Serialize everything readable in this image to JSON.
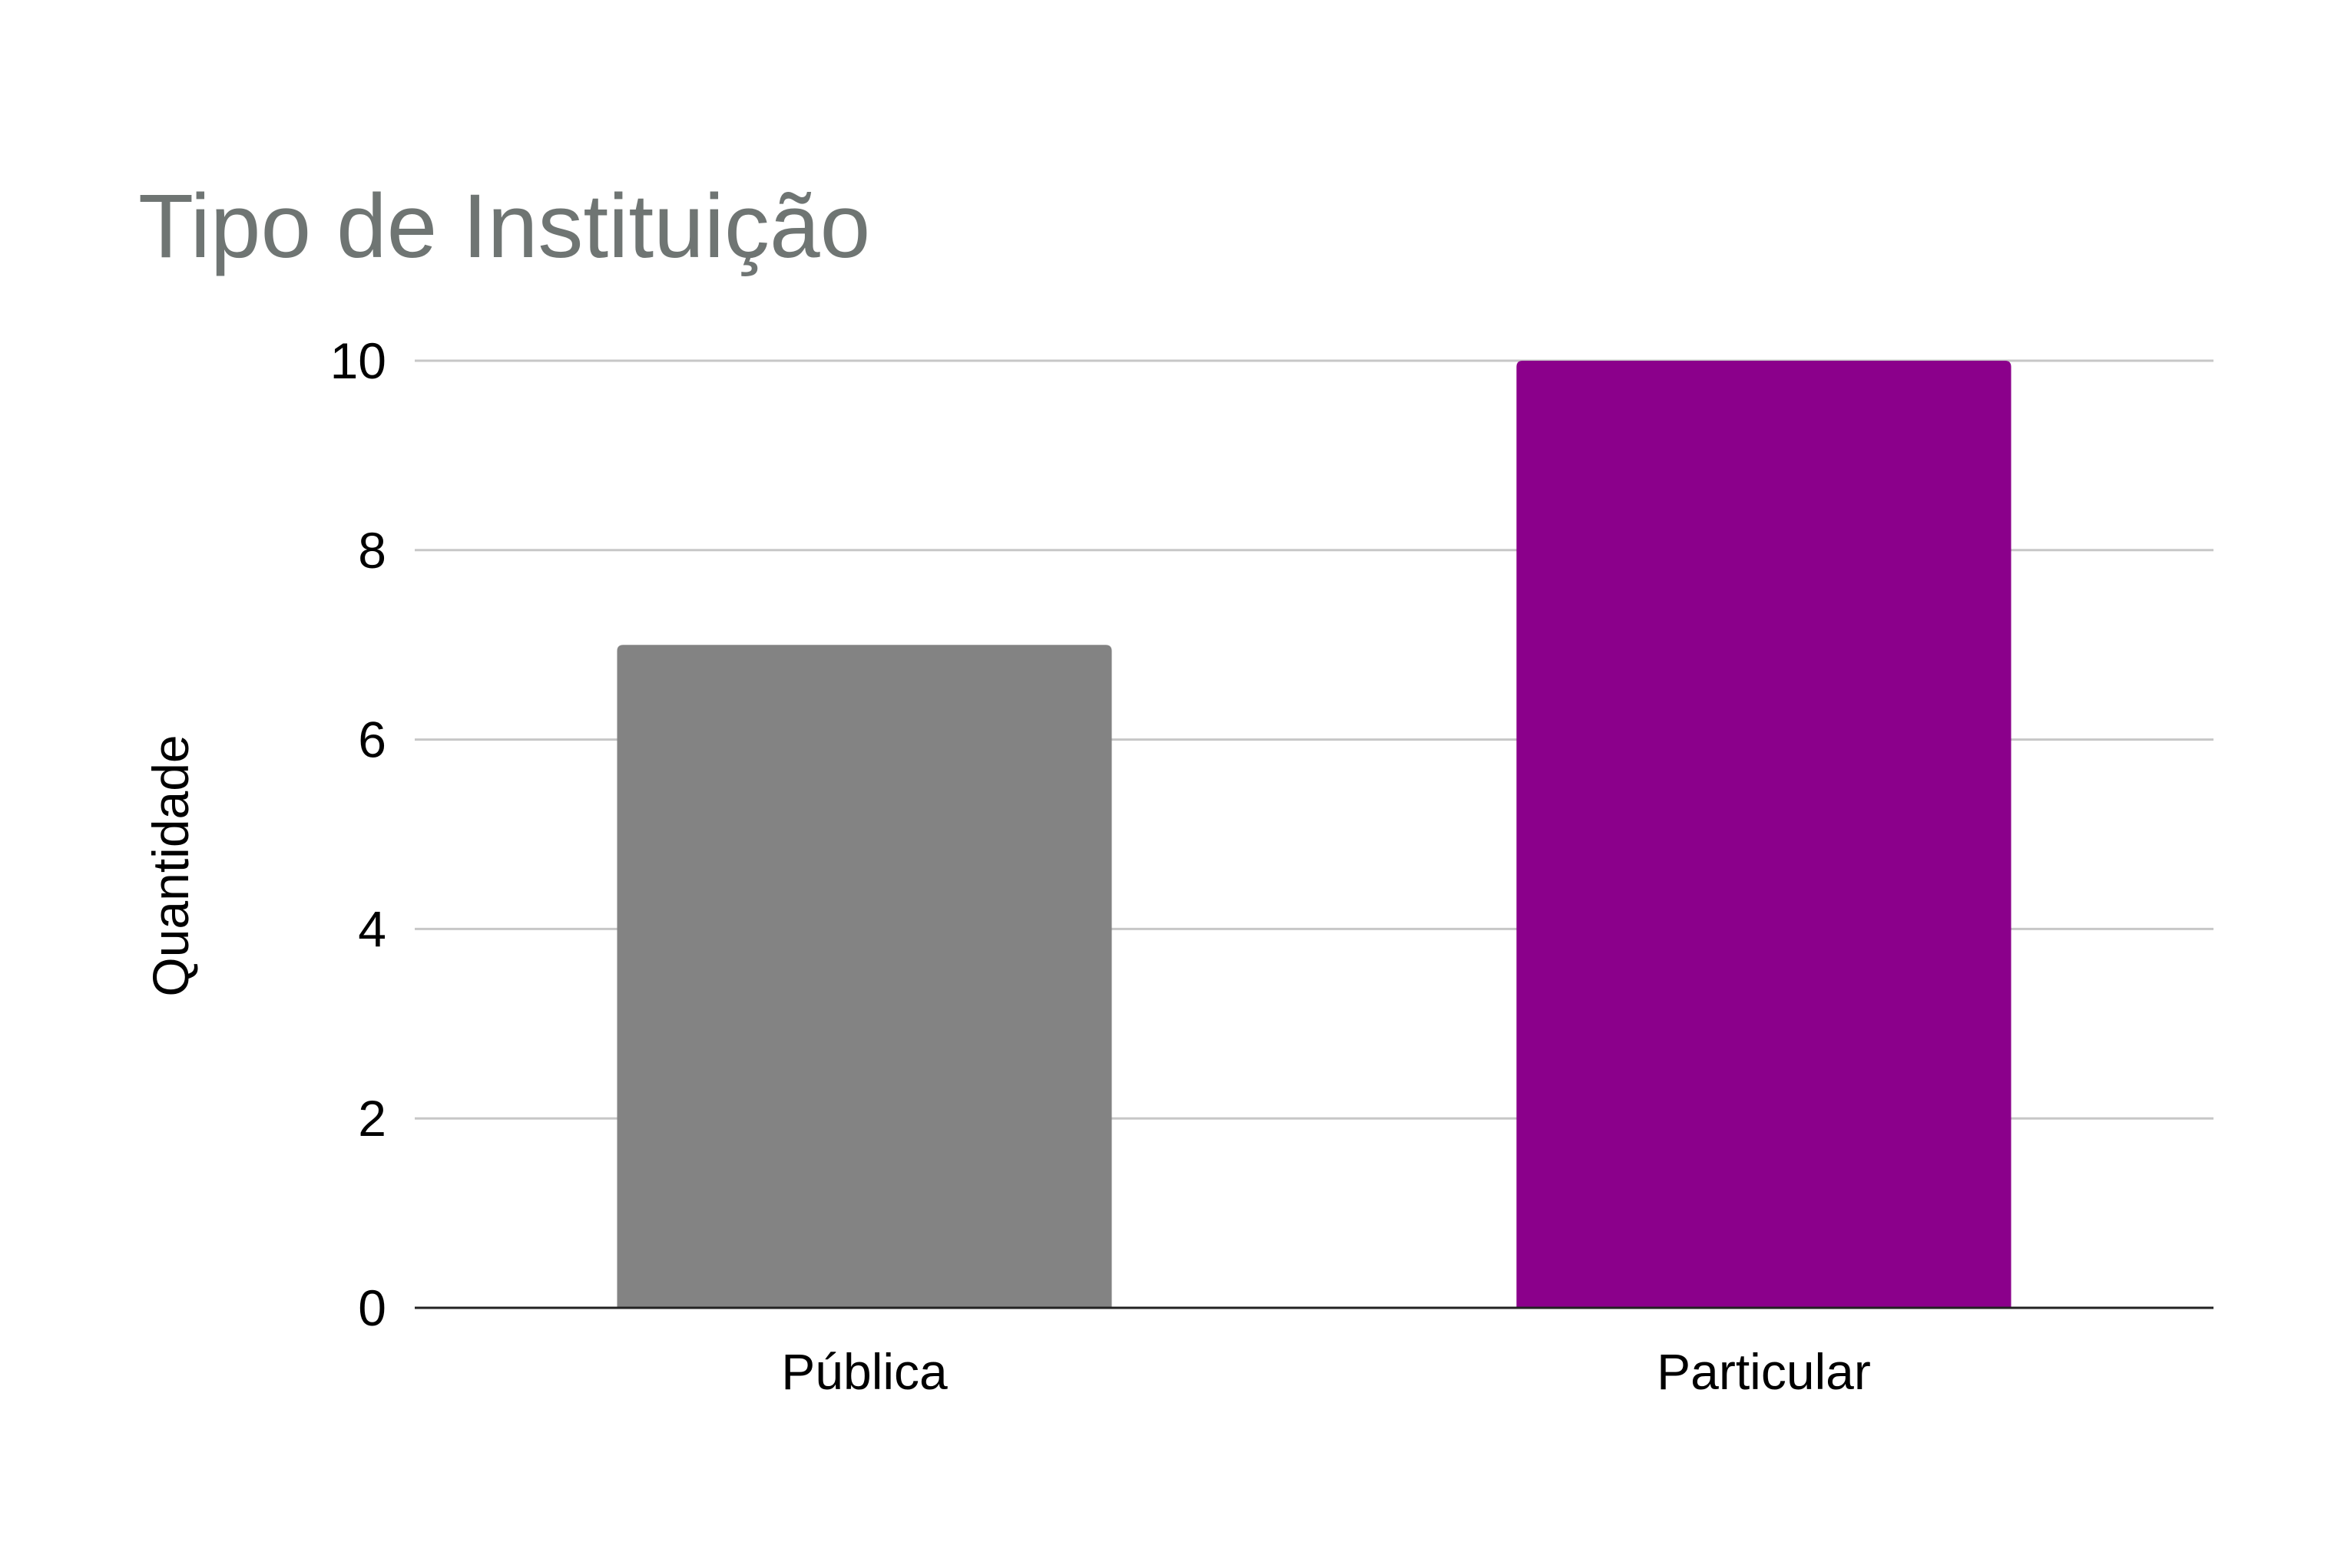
{
  "chart_data": {
    "type": "bar",
    "title": "Tipo de Instituição",
    "xlabel": "",
    "ylabel": "Quantidade",
    "categories": [
      "Pública",
      "Particular"
    ],
    "values": [
      7,
      10
    ],
    "bar_colors": [
      "#838383",
      "#8b008b"
    ],
    "ylim": [
      0,
      10
    ],
    "yticks": [
      0,
      2,
      4,
      6,
      8,
      10
    ],
    "ytick_labels": [
      "0",
      "2",
      "4",
      "6",
      "8",
      "10"
    ],
    "grid": true,
    "legend": "none",
    "title_color": "#6f7573",
    "gridline_color": "#c7c7c7",
    "axis_color": "#222222"
  }
}
